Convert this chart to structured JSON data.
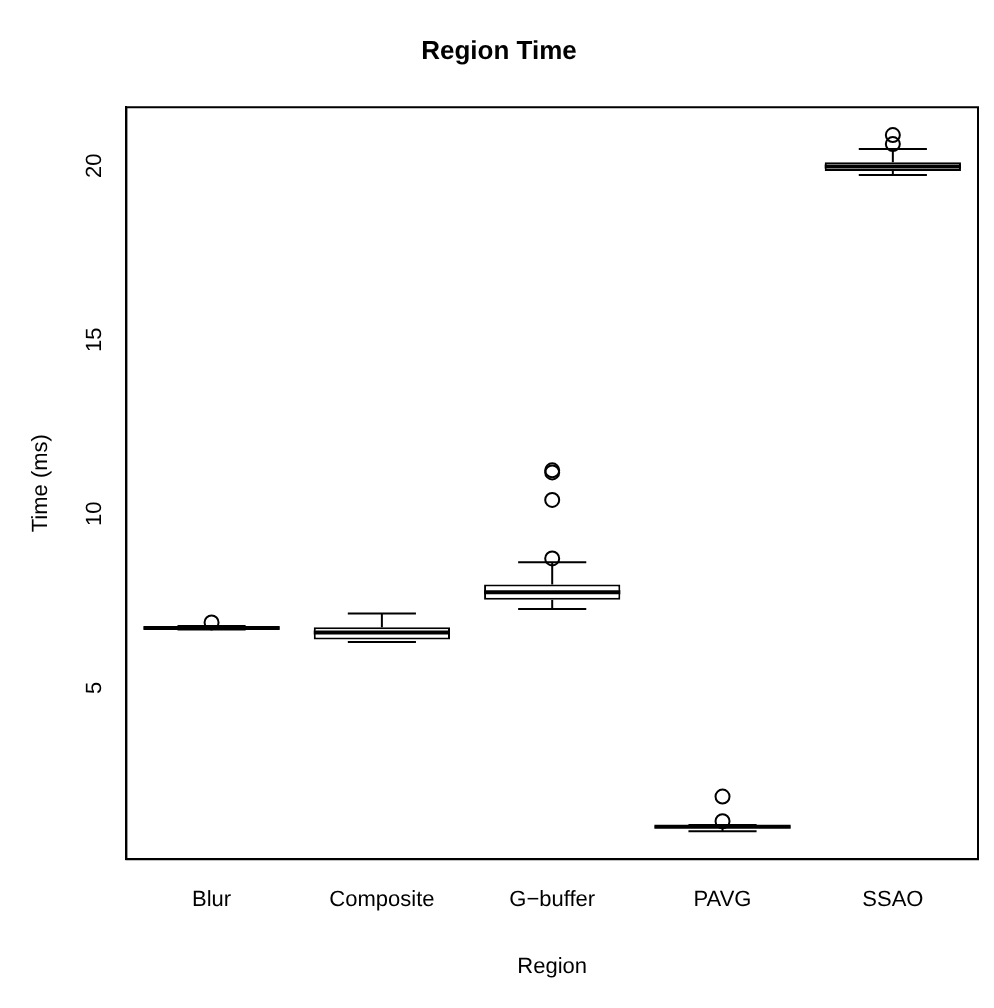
{
  "chart_data": {
    "type": "box",
    "title": "Region Time",
    "xlabel": "Region",
    "ylabel": "Time (ms)",
    "categories": [
      "Blur",
      "Composite",
      "G−buffer",
      "PAVG",
      "SSAO"
    ],
    "color": "#000000",
    "boxes": [
      {
        "low": 6.68,
        "q1": 6.7,
        "median": 6.72,
        "q3": 6.74,
        "high": 6.78,
        "outliers": [
          6.88
        ]
      },
      {
        "low": 6.32,
        "q1": 6.39,
        "median": 6.59,
        "q3": 6.74,
        "high": 7.14
      },
      {
        "low": 7.27,
        "q1": 7.53,
        "median": 7.75,
        "q3": 7.97,
        "high": 8.61,
        "outliers": [
          8.72,
          10.4,
          11.19,
          11.25
        ]
      },
      {
        "low": 0.88,
        "q1": 0.98,
        "median": 1.01,
        "q3": 1.03,
        "high": 1.06,
        "outliers": [
          1.17,
          1.88
        ]
      },
      {
        "low": 19.73,
        "q1": 19.85,
        "median": 19.98,
        "q3": 20.1,
        "high": 20.48,
        "outliers": [
          20.62,
          20.88
        ]
      }
    ],
    "ylim": [
      0.08,
      21.68
    ],
    "yticks": [
      5,
      10,
      15,
      20
    ]
  }
}
